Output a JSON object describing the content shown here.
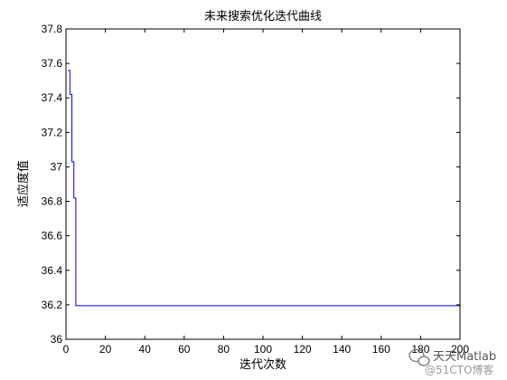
{
  "chart_data": {
    "type": "line",
    "title": "未来搜索优化迭代曲线",
    "xlabel": "迭代次数",
    "ylabel": "适应度值",
    "xlim": [
      0,
      200
    ],
    "ylim": [
      36,
      37.8
    ],
    "xticks": [
      0,
      20,
      40,
      60,
      80,
      100,
      120,
      140,
      160,
      180,
      200
    ],
    "yticks": [
      36,
      36.2,
      36.4,
      36.6,
      36.8,
      37,
      37.2,
      37.4,
      37.6,
      37.8
    ],
    "grid": false,
    "series": [
      {
        "color": "#0000ff",
        "x": [
          1,
          2,
          2,
          3,
          3,
          4,
          4,
          5,
          5,
          200
        ],
        "y": [
          37.56,
          37.56,
          37.42,
          37.42,
          37.03,
          37.03,
          36.82,
          36.82,
          36.195,
          36.195
        ]
      }
    ]
  },
  "watermark": {
    "icon": "wechat-icon",
    "text": "天天Matlab",
    "subtext": "@51CTO博客"
  }
}
